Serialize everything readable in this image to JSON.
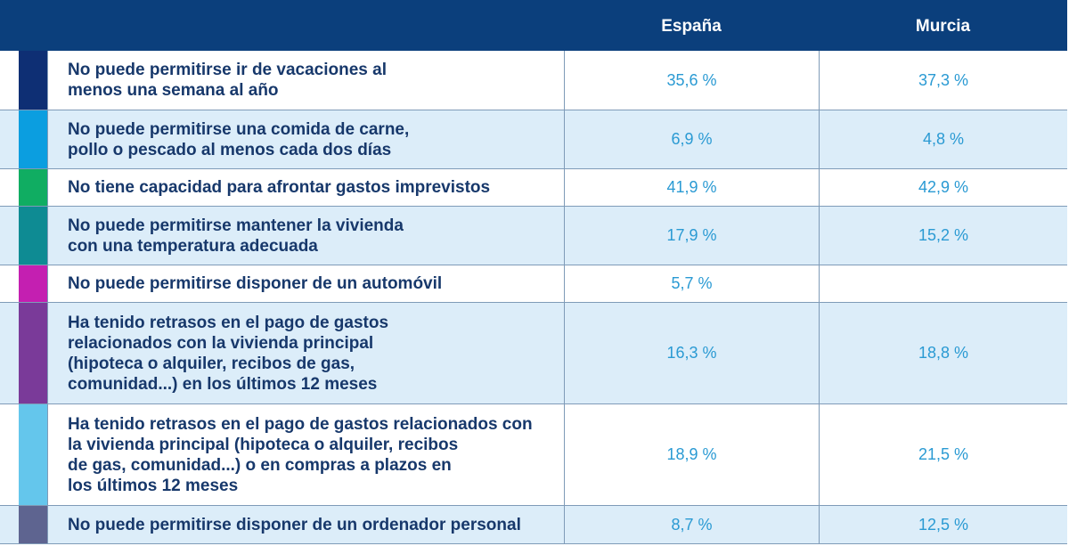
{
  "table": {
    "headers": [
      "España",
      "Murcia"
    ],
    "rows": [
      {
        "color": "#0e2f74",
        "label": "No puede permitirse ir de vacaciones al\nmenos una semana al año",
        "values": [
          "35,6 %",
          "37,3 %"
        ]
      },
      {
        "color": "#0b9ee0",
        "label": "No puede permitirse una comida de carne,\npollo o pescado al menos cada dos días",
        "values": [
          "6,9 %",
          "4,8 %"
        ]
      },
      {
        "color": "#10ad62",
        "label": "No tiene capacidad para afrontar gastos imprevistos",
        "values": [
          "41,9 %",
          "42,9 %"
        ]
      },
      {
        "color": "#0e8b93",
        "label": "No puede permitirse mantener la vivienda\ncon una temperatura adecuada",
        "values": [
          "17,9 %",
          "15,2 %"
        ]
      },
      {
        "color": "#c41fb1",
        "label": "No puede permitirse disponer de un automóvil",
        "values": [
          "5,7 %",
          null
        ]
      },
      {
        "color": "#7a3a99",
        "label": "Ha tenido retrasos en el pago de gastos\nrelacionados con la vivienda principal\n(hipoteca o alquiler, recibos de gas,\ncomunidad...) en los últimos 12 meses",
        "values": [
          "16,3 %",
          "18,8 %"
        ]
      },
      {
        "color": "#64c6ec",
        "label": "Ha tenido retrasos en el pago de gastos relacionados con\nla vivienda principal (hipoteca o alquiler, recibos\nde gas, comunidad...) o en compras a plazos en\nlos últimos 12 meses",
        "values": [
          "18,9 %",
          "21,5 %"
        ]
      },
      {
        "color": "#5e6490",
        "label": "No puede permitirse disponer de un ordenador personal",
        "values": [
          "8,7 %",
          "12,5 %"
        ]
      }
    ]
  }
}
